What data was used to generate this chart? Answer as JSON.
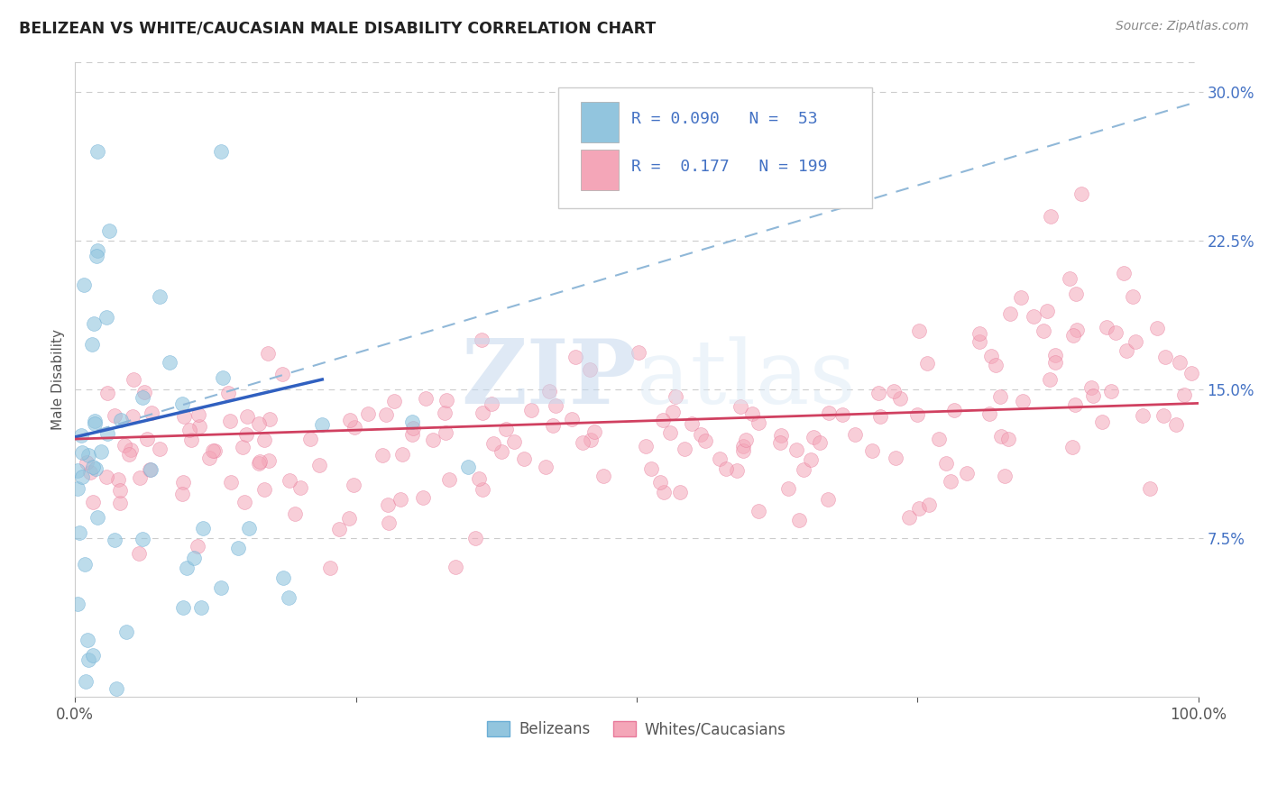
{
  "title": "BELIZEAN VS WHITE/CAUCASIAN MALE DISABILITY CORRELATION CHART",
  "source": "Source: ZipAtlas.com",
  "ylabel": "Male Disability",
  "xlim": [
    0,
    1
  ],
  "ylim": [
    -0.005,
    0.315
  ],
  "yticks": [
    0.075,
    0.15,
    0.225,
    0.3
  ],
  "ytick_labels": [
    "7.5%",
    "15.0%",
    "22.5%",
    "30.0%"
  ],
  "belizean_color": "#92c5de",
  "belizean_edge": "#6baed6",
  "white_color": "#f4a6b8",
  "white_edge": "#e8799a",
  "belizean_line_color": "#3060c0",
  "white_line_color": "#d04060",
  "dash_line_color": "#90b8d8",
  "belizean_R": 0.09,
  "belizean_N": 53,
  "white_R": 0.177,
  "white_N": 199,
  "legend_label_belizean": "Belizeans",
  "legend_label_white": "Whites/Caucasians",
  "watermark_zip": "ZIP",
  "watermark_atlas": "atlas",
  "grid_color": "#cccccc",
  "background_color": "#ffffff",
  "tick_label_color": "#4472c4",
  "title_color": "#222222",
  "source_color": "#888888",
  "ylabel_color": "#555555"
}
